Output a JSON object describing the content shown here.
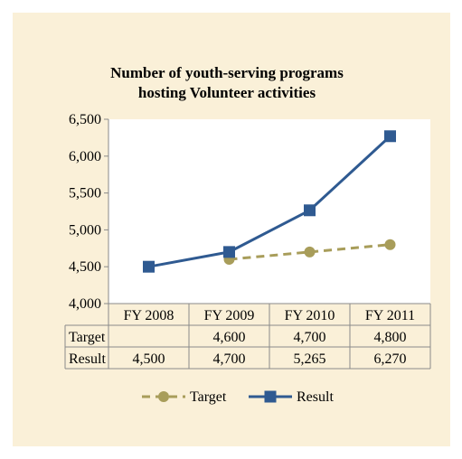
{
  "chart_data": {
    "type": "line",
    "title_lines": [
      "Number of youth-serving programs",
      "hosting Volunteer activities"
    ],
    "categories": [
      "FY 2008",
      "FY 2009",
      "FY 2010",
      "FY 2011"
    ],
    "y_ticks": [
      "4,000",
      "4,500",
      "5,000",
      "5,500",
      "6,000",
      "6,500"
    ],
    "y_tick_values": [
      4000,
      4500,
      5000,
      5500,
      6000,
      6500
    ],
    "ylim": [
      4000,
      6500
    ],
    "grid": false,
    "legend_position": "bottom",
    "series": [
      {
        "name": "Target",
        "values": [
          null,
          4600,
          4700,
          4800
        ],
        "labels": [
          "",
          "4,600",
          "4,700",
          "4,800"
        ],
        "color": "#a89d5a",
        "line_style": "dashed",
        "marker": "circle"
      },
      {
        "name": "Result",
        "values": [
          4500,
          4700,
          5265,
          6270
        ],
        "labels": [
          "4,500",
          "4,700",
          "5,265",
          "6,270"
        ],
        "color": "#2f5a91",
        "line_style": "solid",
        "marker": "square"
      }
    ]
  },
  "colors": {
    "background": "#faf0d8",
    "plot_area": "#ffffff",
    "axis": "#8a8a8a"
  }
}
